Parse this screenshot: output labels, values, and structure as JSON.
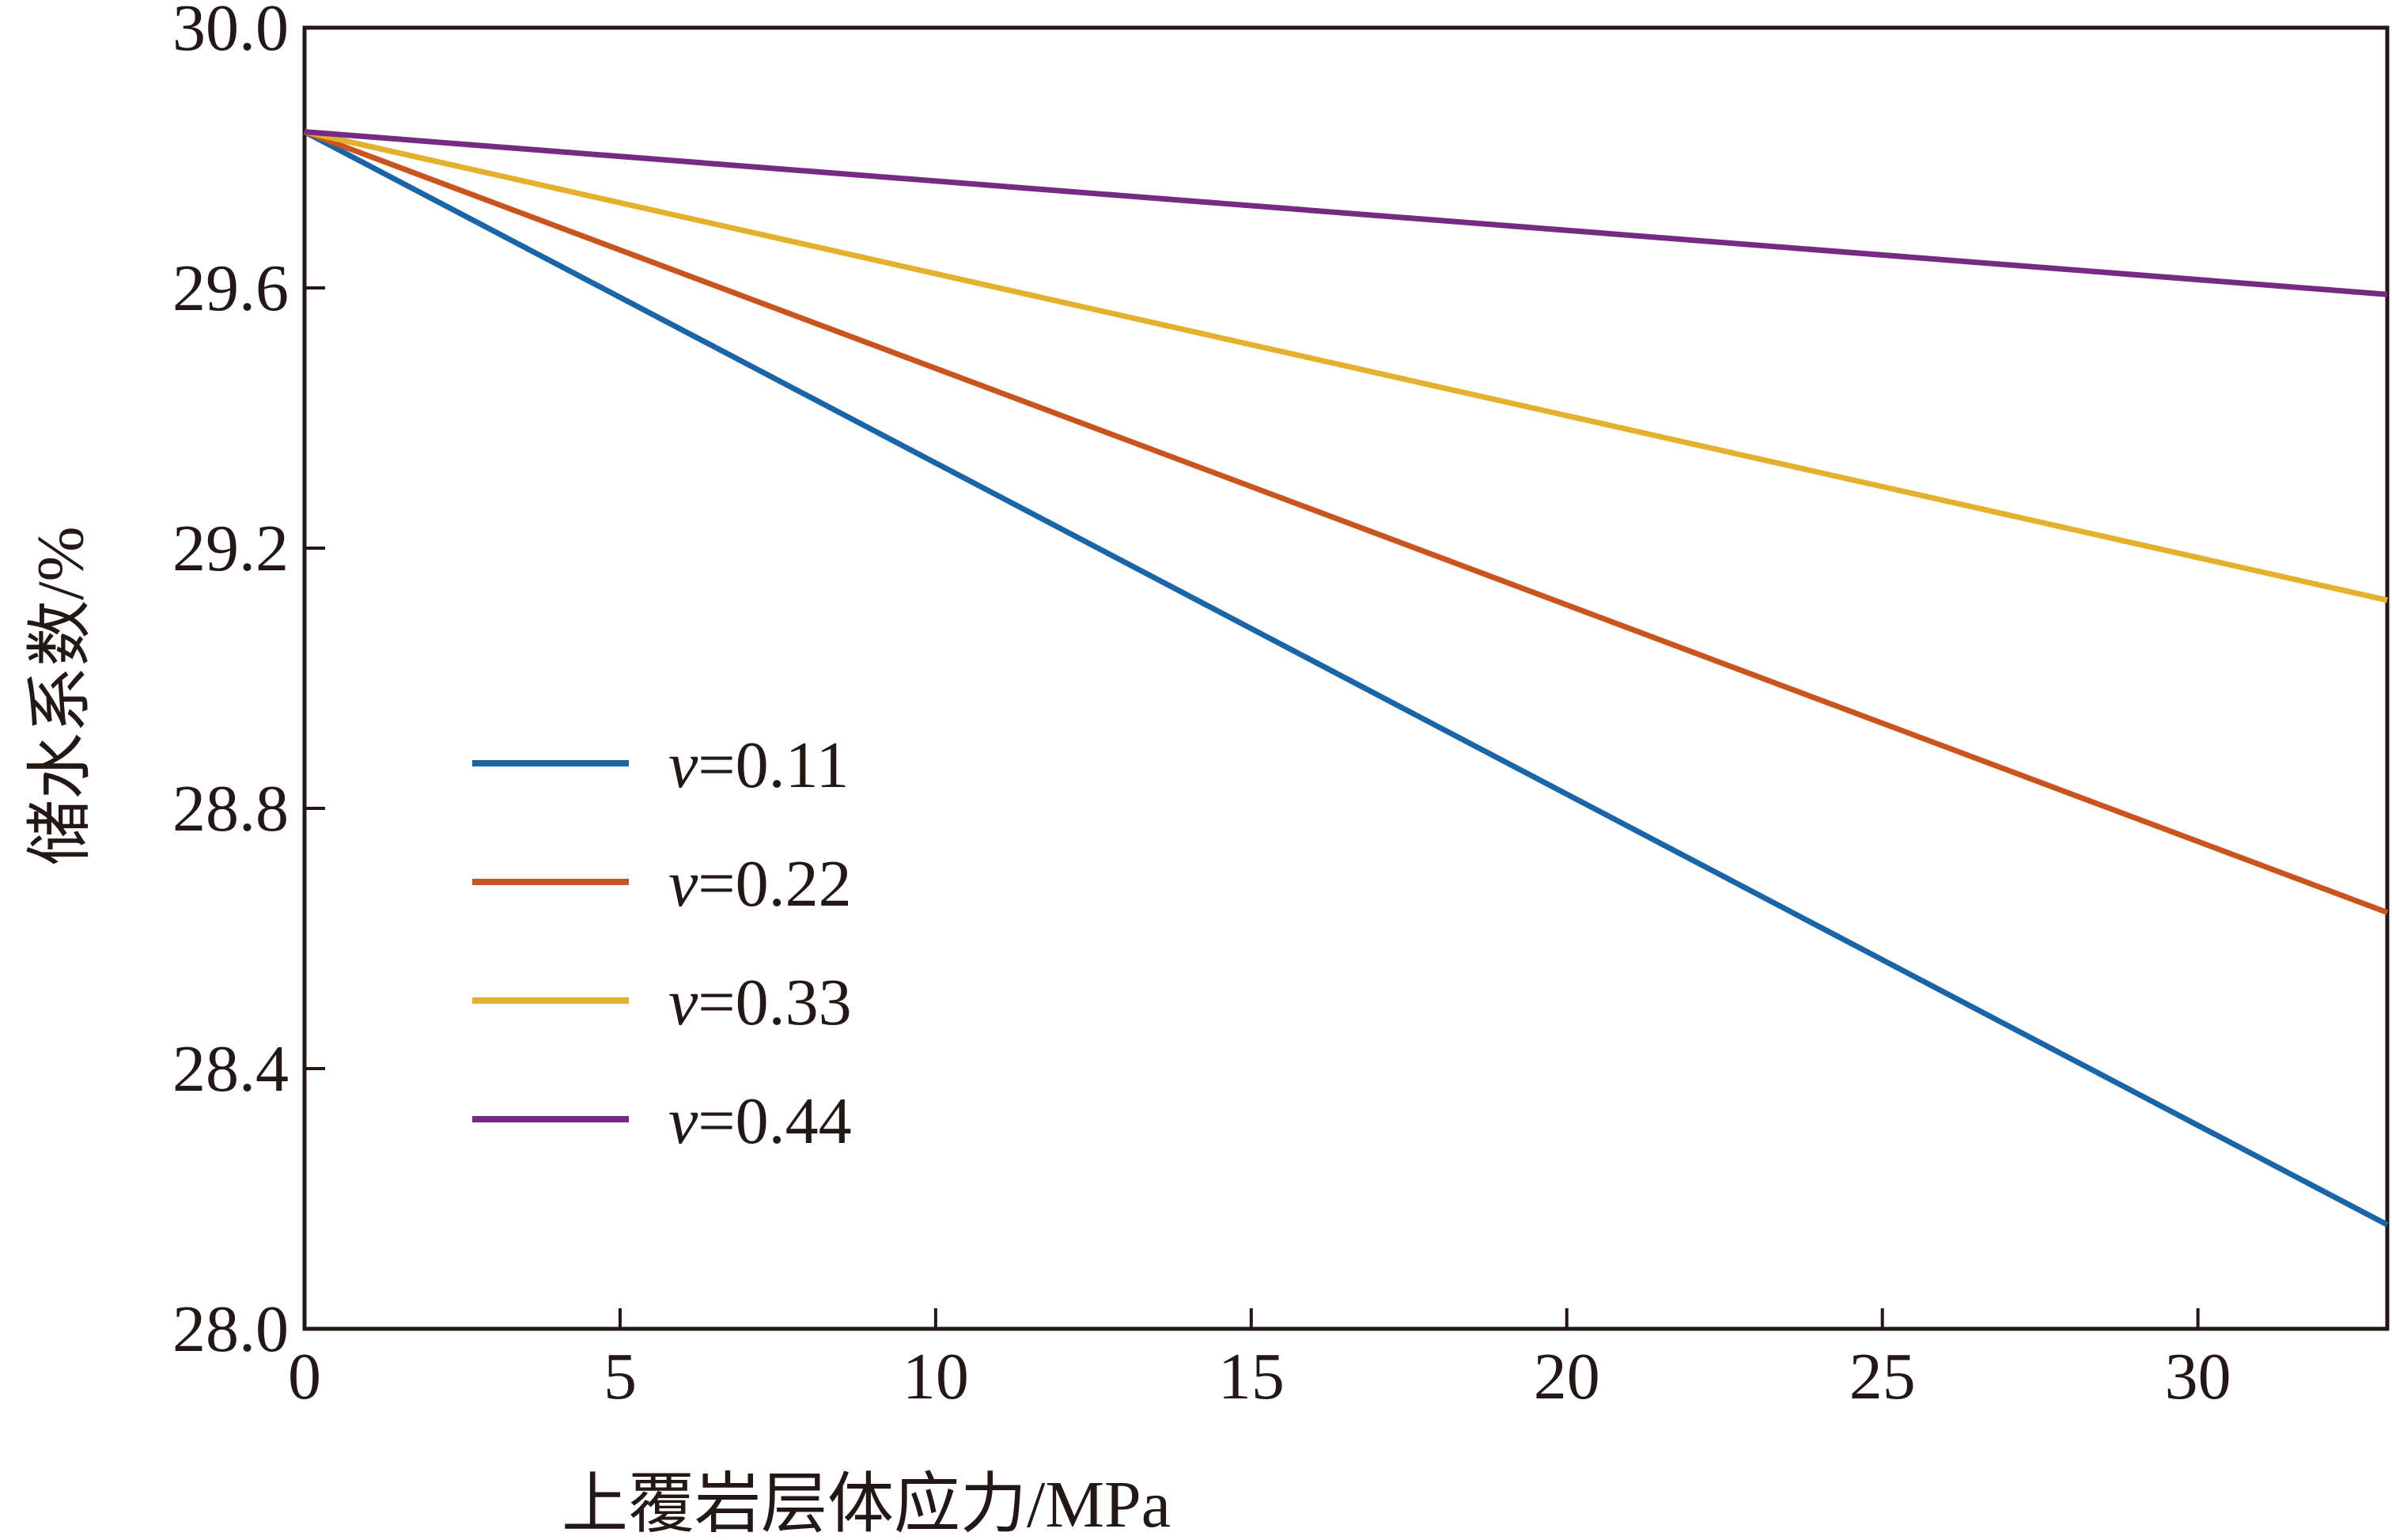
{
  "chart_data": {
    "type": "line",
    "title": "",
    "xlabel": "上覆岩层体应力/MPa",
    "ylabel": "储水系数/%",
    "xlim": [
      0,
      33
    ],
    "ylim": [
      28.0,
      30.0
    ],
    "xticks": [
      0,
      5,
      10,
      15,
      20,
      25,
      30
    ],
    "xtick_labels": [
      "0",
      "5",
      "10",
      "15",
      "20",
      "25",
      "30"
    ],
    "yticks": [
      28.0,
      28.4,
      28.8,
      29.2,
      29.6,
      30.0
    ],
    "ytick_labels": [
      "28.0",
      "28.4",
      "28.8",
      "29.2",
      "29.6",
      "30.0"
    ],
    "grid": false,
    "legend_position": "lower-left",
    "x": [
      0,
      33
    ],
    "series": [
      {
        "name": "v=0.11",
        "name_prefix": "v",
        "name_suffix": "=0.11",
        "color": "#1a64a8",
        "values": [
          29.84,
          28.16
        ]
      },
      {
        "name": "v=0.22",
        "name_prefix": "v",
        "name_suffix": "=0.22",
        "color": "#c9541f",
        "values": [
          29.84,
          28.64
        ]
      },
      {
        "name": "v=0.33",
        "name_prefix": "v",
        "name_suffix": "=0.33",
        "color": "#e3b12e",
        "values": [
          29.84,
          29.12
        ]
      },
      {
        "name": "v=0.44",
        "name_prefix": "v",
        "name_suffix": "=0.44",
        "color": "#772a83",
        "values": [
          29.84,
          29.59
        ]
      }
    ]
  }
}
